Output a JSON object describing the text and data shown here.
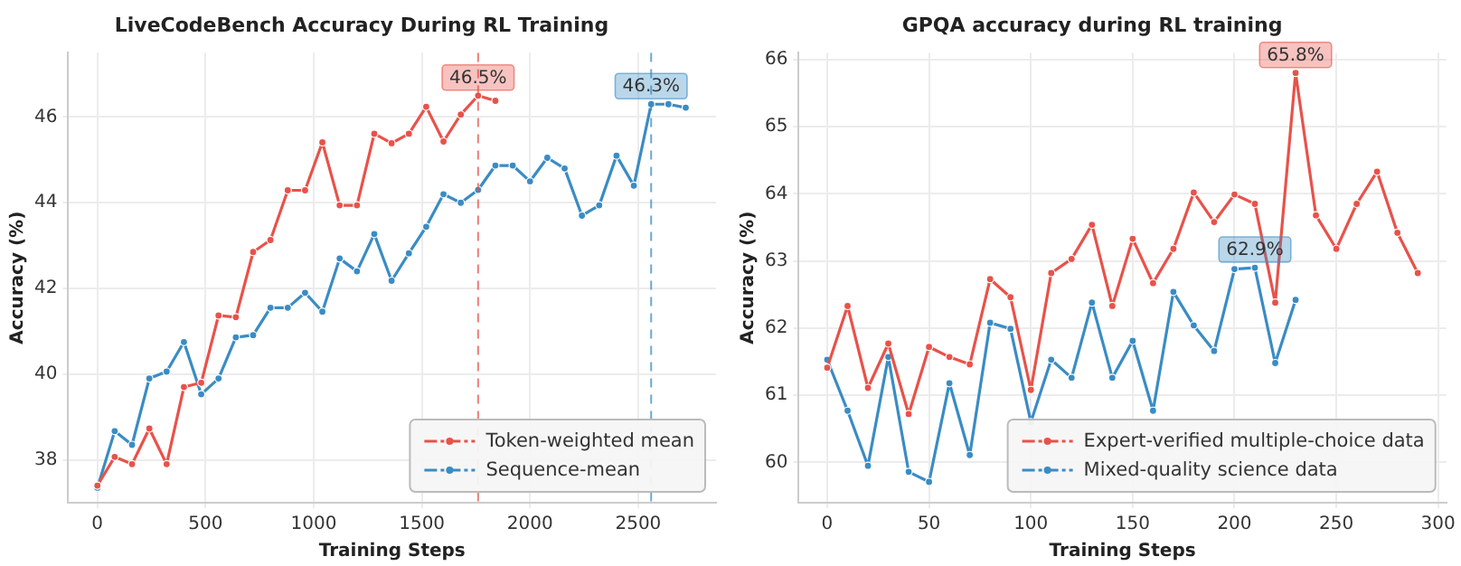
{
  "chart_data": [
    {
      "type": "line",
      "title": "LiveCodeBench Accuracy During RL Training",
      "xlabel": "Training Steps",
      "ylabel": "Accuracy (%)",
      "xlim": [
        -135,
        2860
      ],
      "xticks": [
        0,
        500,
        1000,
        1500,
        2000,
        2500
      ],
      "ylim": [
        37.0,
        47.5
      ],
      "yticks": [
        38,
        40,
        42,
        44,
        46
      ],
      "grid": true,
      "legend": "bottom right",
      "marker": "circle",
      "line_style": "solid",
      "series": [
        {
          "name": "Token-weighted mean",
          "color": "#e8524a",
          "x": [
            0,
            80,
            160,
            240,
            320,
            400,
            480,
            560,
            640,
            720,
            800,
            880,
            960,
            1040,
            1120,
            1200,
            1280,
            1360,
            1440,
            1520,
            1600,
            1680,
            1760,
            1840
          ],
          "values": [
            37.4,
            38.07,
            37.9,
            38.73,
            37.9,
            39.7,
            39.8,
            41.37,
            41.33,
            42.85,
            43.13,
            44.29,
            44.29,
            45.41,
            43.94,
            43.94,
            45.61,
            45.39,
            45.61,
            46.24,
            45.43,
            46.06,
            46.5,
            46.38
          ]
        },
        {
          "name": "Sequence-mean",
          "color": "#3a8cc4",
          "x": [
            0,
            80,
            160,
            240,
            320,
            400,
            480,
            560,
            640,
            720,
            800,
            880,
            960,
            1040,
            1120,
            1200,
            1280,
            1360,
            1440,
            1520,
            1600,
            1680,
            1760,
            1840,
            1920,
            2000,
            2080,
            2160,
            2240,
            2320,
            2400,
            2480,
            2560,
            2640,
            2720
          ],
          "values": [
            37.35,
            38.67,
            38.35,
            39.9,
            40.06,
            40.75,
            39.53,
            39.9,
            40.86,
            40.91,
            41.55,
            41.55,
            41.9,
            41.46,
            42.7,
            42.4,
            43.27,
            42.18,
            42.82,
            43.44,
            44.2,
            44.0,
            44.3,
            44.87,
            44.87,
            44.5,
            45.05,
            44.8,
            43.7,
            43.94,
            45.1,
            44.4,
            46.3,
            46.3,
            46.22
          ]
        }
      ],
      "ref_lines": [
        {
          "axis": "x",
          "value": 1760,
          "color": "#e8524a",
          "line_style": "dashed"
        },
        {
          "axis": "x",
          "value": 2560,
          "color": "#3a8cc4",
          "line_style": "dashed"
        }
      ],
      "annotations": [
        {
          "text": "46.5%",
          "x": 1760,
          "y": 46.5
        },
        {
          "text": "46.3%",
          "x": 2560,
          "y": 46.3
        }
      ]
    },
    {
      "type": "line",
      "title": "GPQA accuracy during RL training",
      "xlabel": "Training Steps",
      "ylabel": "Accuracy (%)",
      "xlim": [
        -14,
        304
      ],
      "xticks": [
        0,
        50,
        100,
        150,
        200,
        250,
        300
      ],
      "ylim": [
        59.4,
        66.1
      ],
      "yticks": [
        60,
        61,
        62,
        63,
        64,
        65,
        66
      ],
      "grid": true,
      "legend": "bottom right",
      "marker": "circle",
      "line_style": "solid",
      "series": [
        {
          "name": "Expert-verified multiple-choice data",
          "color": "#e8524a",
          "x": [
            0,
            10,
            20,
            30,
            40,
            50,
            60,
            70,
            80,
            90,
            100,
            110,
            120,
            130,
            140,
            150,
            160,
            170,
            180,
            190,
            200,
            210,
            220,
            230,
            240,
            250,
            260,
            270,
            280,
            290
          ],
          "values": [
            61.41,
            62.33,
            61.11,
            61.77,
            60.72,
            61.72,
            61.57,
            61.46,
            62.73,
            62.46,
            61.08,
            62.82,
            63.03,
            63.54,
            62.33,
            63.33,
            62.67,
            63.18,
            64.02,
            63.58,
            63.99,
            63.85,
            62.38,
            65.8,
            63.68,
            63.18,
            63.85,
            64.33,
            63.42,
            62.82
          ]
        },
        {
          "name": "Mixed-quality science data",
          "color": "#3a8cc4",
          "x": [
            0,
            10,
            20,
            30,
            40,
            50,
            60,
            70,
            80,
            90,
            100,
            110,
            120,
            130,
            140,
            150,
            160,
            170,
            180,
            190,
            200,
            210,
            220,
            230
          ],
          "values": [
            61.53,
            60.77,
            59.95,
            61.57,
            59.86,
            59.71,
            61.18,
            60.11,
            62.08,
            61.99,
            60.6,
            61.53,
            61.26,
            62.38,
            61.26,
            61.81,
            60.77,
            62.54,
            62.04,
            61.66,
            62.88,
            62.9,
            61.48,
            62.42
          ]
        }
      ],
      "annotations": [
        {
          "text": "65.8%",
          "x": 230,
          "y": 65.8
        },
        {
          "text": "62.9%",
          "x": 210,
          "y": 62.9
        }
      ]
    }
  ]
}
